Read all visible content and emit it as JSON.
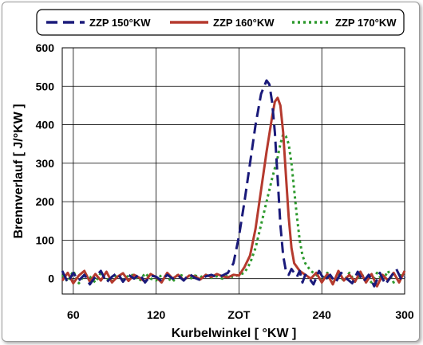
{
  "chart_data": {
    "type": "line",
    "xlabel": "Kurbelwinkel [ °KW ]",
    "ylabel": "Brennverlauf [ J/°KW ]",
    "xlim": [
      52,
      300
    ],
    "ylim": [
      -40,
      600
    ],
    "x_ticks": [
      60,
      120,
      180,
      240,
      300
    ],
    "x_tick_labels": [
      "60",
      "120",
      "ZOT",
      "240",
      "300"
    ],
    "y_ticks": [
      0,
      100,
      200,
      300,
      400,
      500,
      600
    ],
    "grid": true,
    "legend_position": "top",
    "series": [
      {
        "name": "ZZP 150°KW",
        "color": "#1a1a7a",
        "dash": "long-dash",
        "x": [
          52,
          56,
          60,
          64,
          68,
          72,
          76,
          80,
          84,
          88,
          92,
          96,
          100,
          104,
          108,
          112,
          116,
          120,
          124,
          128,
          132,
          136,
          140,
          144,
          148,
          152,
          156,
          160,
          164,
          168,
          172,
          176,
          180,
          184,
          188,
          192,
          196,
          200,
          202,
          204,
          206,
          208,
          210,
          212,
          214,
          216,
          218,
          220,
          222,
          224,
          226,
          228,
          230,
          234,
          238,
          242,
          246,
          250,
          254,
          258,
          262,
          266,
          270,
          274,
          278,
          282,
          286,
          290,
          294,
          298,
          300
        ],
        "y": [
          20,
          -10,
          15,
          -5,
          10,
          -15,
          5,
          20,
          -10,
          5,
          15,
          -8,
          10,
          0,
          12,
          -10,
          8,
          5,
          -6,
          10,
          0,
          8,
          -5,
          12,
          2,
          -4,
          6,
          10,
          4,
          8,
          15,
          40,
          110,
          200,
          300,
          400,
          480,
          515,
          505,
          460,
          380,
          260,
          140,
          60,
          20,
          10,
          25,
          15,
          5,
          20,
          -10,
          10,
          5,
          -15,
          20,
          -5,
          10,
          -10,
          15,
          0,
          -12,
          18,
          -8,
          10,
          -20,
          15,
          -15,
          5,
          25,
          -5,
          5
        ]
      },
      {
        "name": "ZZP 160°KW",
        "color": "#b53a2e",
        "dash": "solid",
        "x": [
          52,
          56,
          60,
          64,
          68,
          72,
          76,
          80,
          84,
          88,
          92,
          96,
          100,
          104,
          108,
          112,
          116,
          120,
          124,
          128,
          132,
          136,
          140,
          144,
          148,
          152,
          156,
          160,
          164,
          168,
          172,
          176,
          180,
          184,
          188,
          192,
          196,
          200,
          204,
          206,
          208,
          210,
          212,
          214,
          216,
          218,
          220,
          224,
          228,
          232,
          236,
          240,
          244,
          248,
          252,
          256,
          260,
          264,
          268,
          272,
          276,
          280,
          284,
          288,
          292,
          296,
          300
        ],
        "y": [
          -5,
          15,
          -12,
          8,
          20,
          -8,
          12,
          -5,
          18,
          -10,
          5,
          14,
          -6,
          10,
          2,
          -8,
          12,
          4,
          -10,
          15,
          0,
          10,
          -4,
          8,
          6,
          -2,
          10,
          4,
          12,
          6,
          3,
          10,
          8,
          30,
          60,
          130,
          230,
          330,
          420,
          460,
          470,
          450,
          380,
          270,
          160,
          80,
          40,
          20,
          10,
          0,
          15,
          -10,
          12,
          -15,
          20,
          -5,
          10,
          -8,
          18,
          -10,
          12,
          -20,
          10,
          -5,
          15,
          -10,
          20
        ]
      },
      {
        "name": "ZZP 170°KW",
        "color": "#2e9a2e",
        "dash": "dotted",
        "x": [
          52,
          56,
          60,
          64,
          68,
          72,
          76,
          80,
          84,
          88,
          92,
          96,
          100,
          104,
          108,
          112,
          116,
          120,
          124,
          128,
          132,
          136,
          140,
          144,
          148,
          152,
          156,
          160,
          164,
          168,
          172,
          176,
          180,
          184,
          188,
          192,
          196,
          200,
          204,
          208,
          210,
          212,
          214,
          216,
          218,
          220,
          222,
          224,
          226,
          228,
          232,
          236,
          240,
          244,
          248,
          252,
          256,
          260,
          264,
          268,
          272,
          276,
          280,
          284,
          288,
          292,
          296,
          300
        ],
        "y": [
          10,
          -8,
          20,
          -12,
          10,
          5,
          -10,
          15,
          0,
          -8,
          12,
          -4,
          8,
          10,
          -6,
          14,
          0,
          -5,
          10,
          2,
          -8,
          12,
          6,
          -2,
          8,
          4,
          10,
          2,
          6,
          0,
          8,
          4,
          10,
          15,
          40,
          80,
          140,
          200,
          260,
          315,
          350,
          375,
          370,
          350,
          300,
          230,
          160,
          100,
          60,
          40,
          20,
          10,
          -5,
          15,
          -10,
          12,
          -6,
          15,
          -8,
          10,
          5,
          -10,
          15,
          -5,
          20,
          -10,
          10,
          5
        ]
      }
    ]
  }
}
